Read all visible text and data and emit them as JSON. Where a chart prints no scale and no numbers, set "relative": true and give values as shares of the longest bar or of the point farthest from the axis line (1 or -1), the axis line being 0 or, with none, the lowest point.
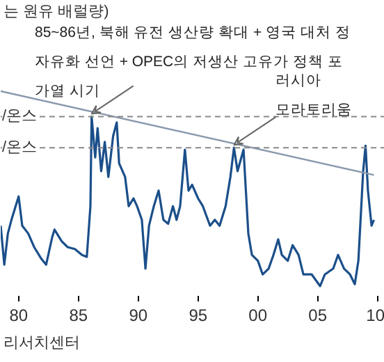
{
  "chart_data": {
    "type": "line",
    "relative": true,
    "ylabel": "는 원유 배럴량)",
    "xlim": [
      1978.5,
      2010.6
    ],
    "xticks": [
      {
        "value": 1980,
        "label": "80"
      },
      {
        "value": 1985,
        "label": "85"
      },
      {
        "value": 1990,
        "label": "90"
      },
      {
        "value": 1995,
        "label": "95"
      },
      {
        "value": 2000,
        "label": "00"
      },
      {
        "value": 2005,
        "label": "05"
      },
      {
        "value": 2010,
        "label": "10"
      }
    ],
    "grid": false,
    "series": [
      {
        "color": "#1b4f8a",
        "x": [
          1978.5,
          1978.8,
          1979.1,
          1979.4,
          1980.0,
          1980.3,
          1980.8,
          1981.3,
          1981.9,
          1982.3,
          1982.8,
          1983.0,
          1983.6,
          1984.1,
          1984.7,
          1985.3,
          1985.7,
          1986.0,
          1986.1,
          1986.4,
          1986.6,
          1986.9,
          1987.2,
          1987.5,
          1987.9,
          1988.2,
          1988.4,
          1988.9,
          1989.2,
          1989.6,
          1989.9,
          1990.3,
          1990.6,
          1990.9,
          1991.3,
          1991.7,
          1992.1,
          1992.5,
          1992.9,
          1993.2,
          1993.5,
          1993.9,
          1994.2,
          1994.5,
          1995.0,
          1995.4,
          1996.0,
          1996.4,
          1996.8,
          1997.3,
          1997.7,
          1998.0,
          1998.3,
          1998.8,
          1999.2,
          1999.5,
          2000.0,
          2000.4,
          2000.9,
          2001.3,
          2001.7,
          2002.0,
          2002.5,
          2002.9,
          2003.4,
          2003.8,
          2004.5,
          2005.2,
          2005.6,
          2006.3,
          2006.7,
          2007.2,
          2007.7,
          2008.1,
          2008.4,
          2008.8,
          2009.0,
          2009.2,
          2009.5,
          2009.7
        ],
        "values": [
          0.31,
          0.11,
          0.27,
          0.34,
          0.46,
          0.31,
          0.27,
          0.2,
          0.14,
          0.11,
          0.25,
          0.29,
          0.23,
          0.2,
          0.19,
          0.16,
          0.15,
          0.41,
          0.87,
          0.66,
          0.81,
          0.59,
          0.74,
          0.56,
          0.77,
          0.84,
          0.63,
          0.56,
          0.41,
          0.45,
          0.41,
          0.34,
          0.09,
          0.31,
          0.41,
          0.49,
          0.34,
          0.32,
          0.41,
          0.34,
          0.41,
          0.7,
          0.49,
          0.52,
          0.45,
          0.41,
          0.31,
          0.34,
          0.31,
          0.41,
          0.56,
          0.71,
          0.59,
          0.7,
          0.27,
          0.16,
          0.13,
          0.06,
          0.09,
          0.16,
          0.24,
          0.16,
          0.13,
          0.21,
          0.16,
          0.06,
          0.06,
          0.0,
          0.06,
          0.09,
          0.16,
          0.09,
          0.06,
          0.01,
          0.13,
          0.59,
          0.72,
          0.49,
          0.31,
          0.34
        ]
      },
      {
        "type": "line",
        "color": "#8a99ad",
        "x": [
          1978.5,
          2009.7
        ],
        "values": [
          1.0,
          0.57
        ]
      }
    ],
    "ref_lines": [
      {
        "axis": "y",
        "value": 0.87,
        "label": "/온스",
        "color": "#888888",
        "line_style": "dashed"
      },
      {
        "axis": "y",
        "value": 0.71,
        "label": "/온스",
        "color": "#888888",
        "line_style": "dashed"
      }
    ],
    "annotations": [
      {
        "text": "85~86년, 북해 유전 생산량 확대 + 영국 대처 정\n자유화 선언 + OPEC의 저생산 고유가 정책 포\n가열 시기",
        "x": 1986.1,
        "y": 0.87
      },
      {
        "text": "러시아\n모라토리움",
        "x": 1998.0,
        "y": 0.71
      },
      "리서치센터"
    ]
  }
}
